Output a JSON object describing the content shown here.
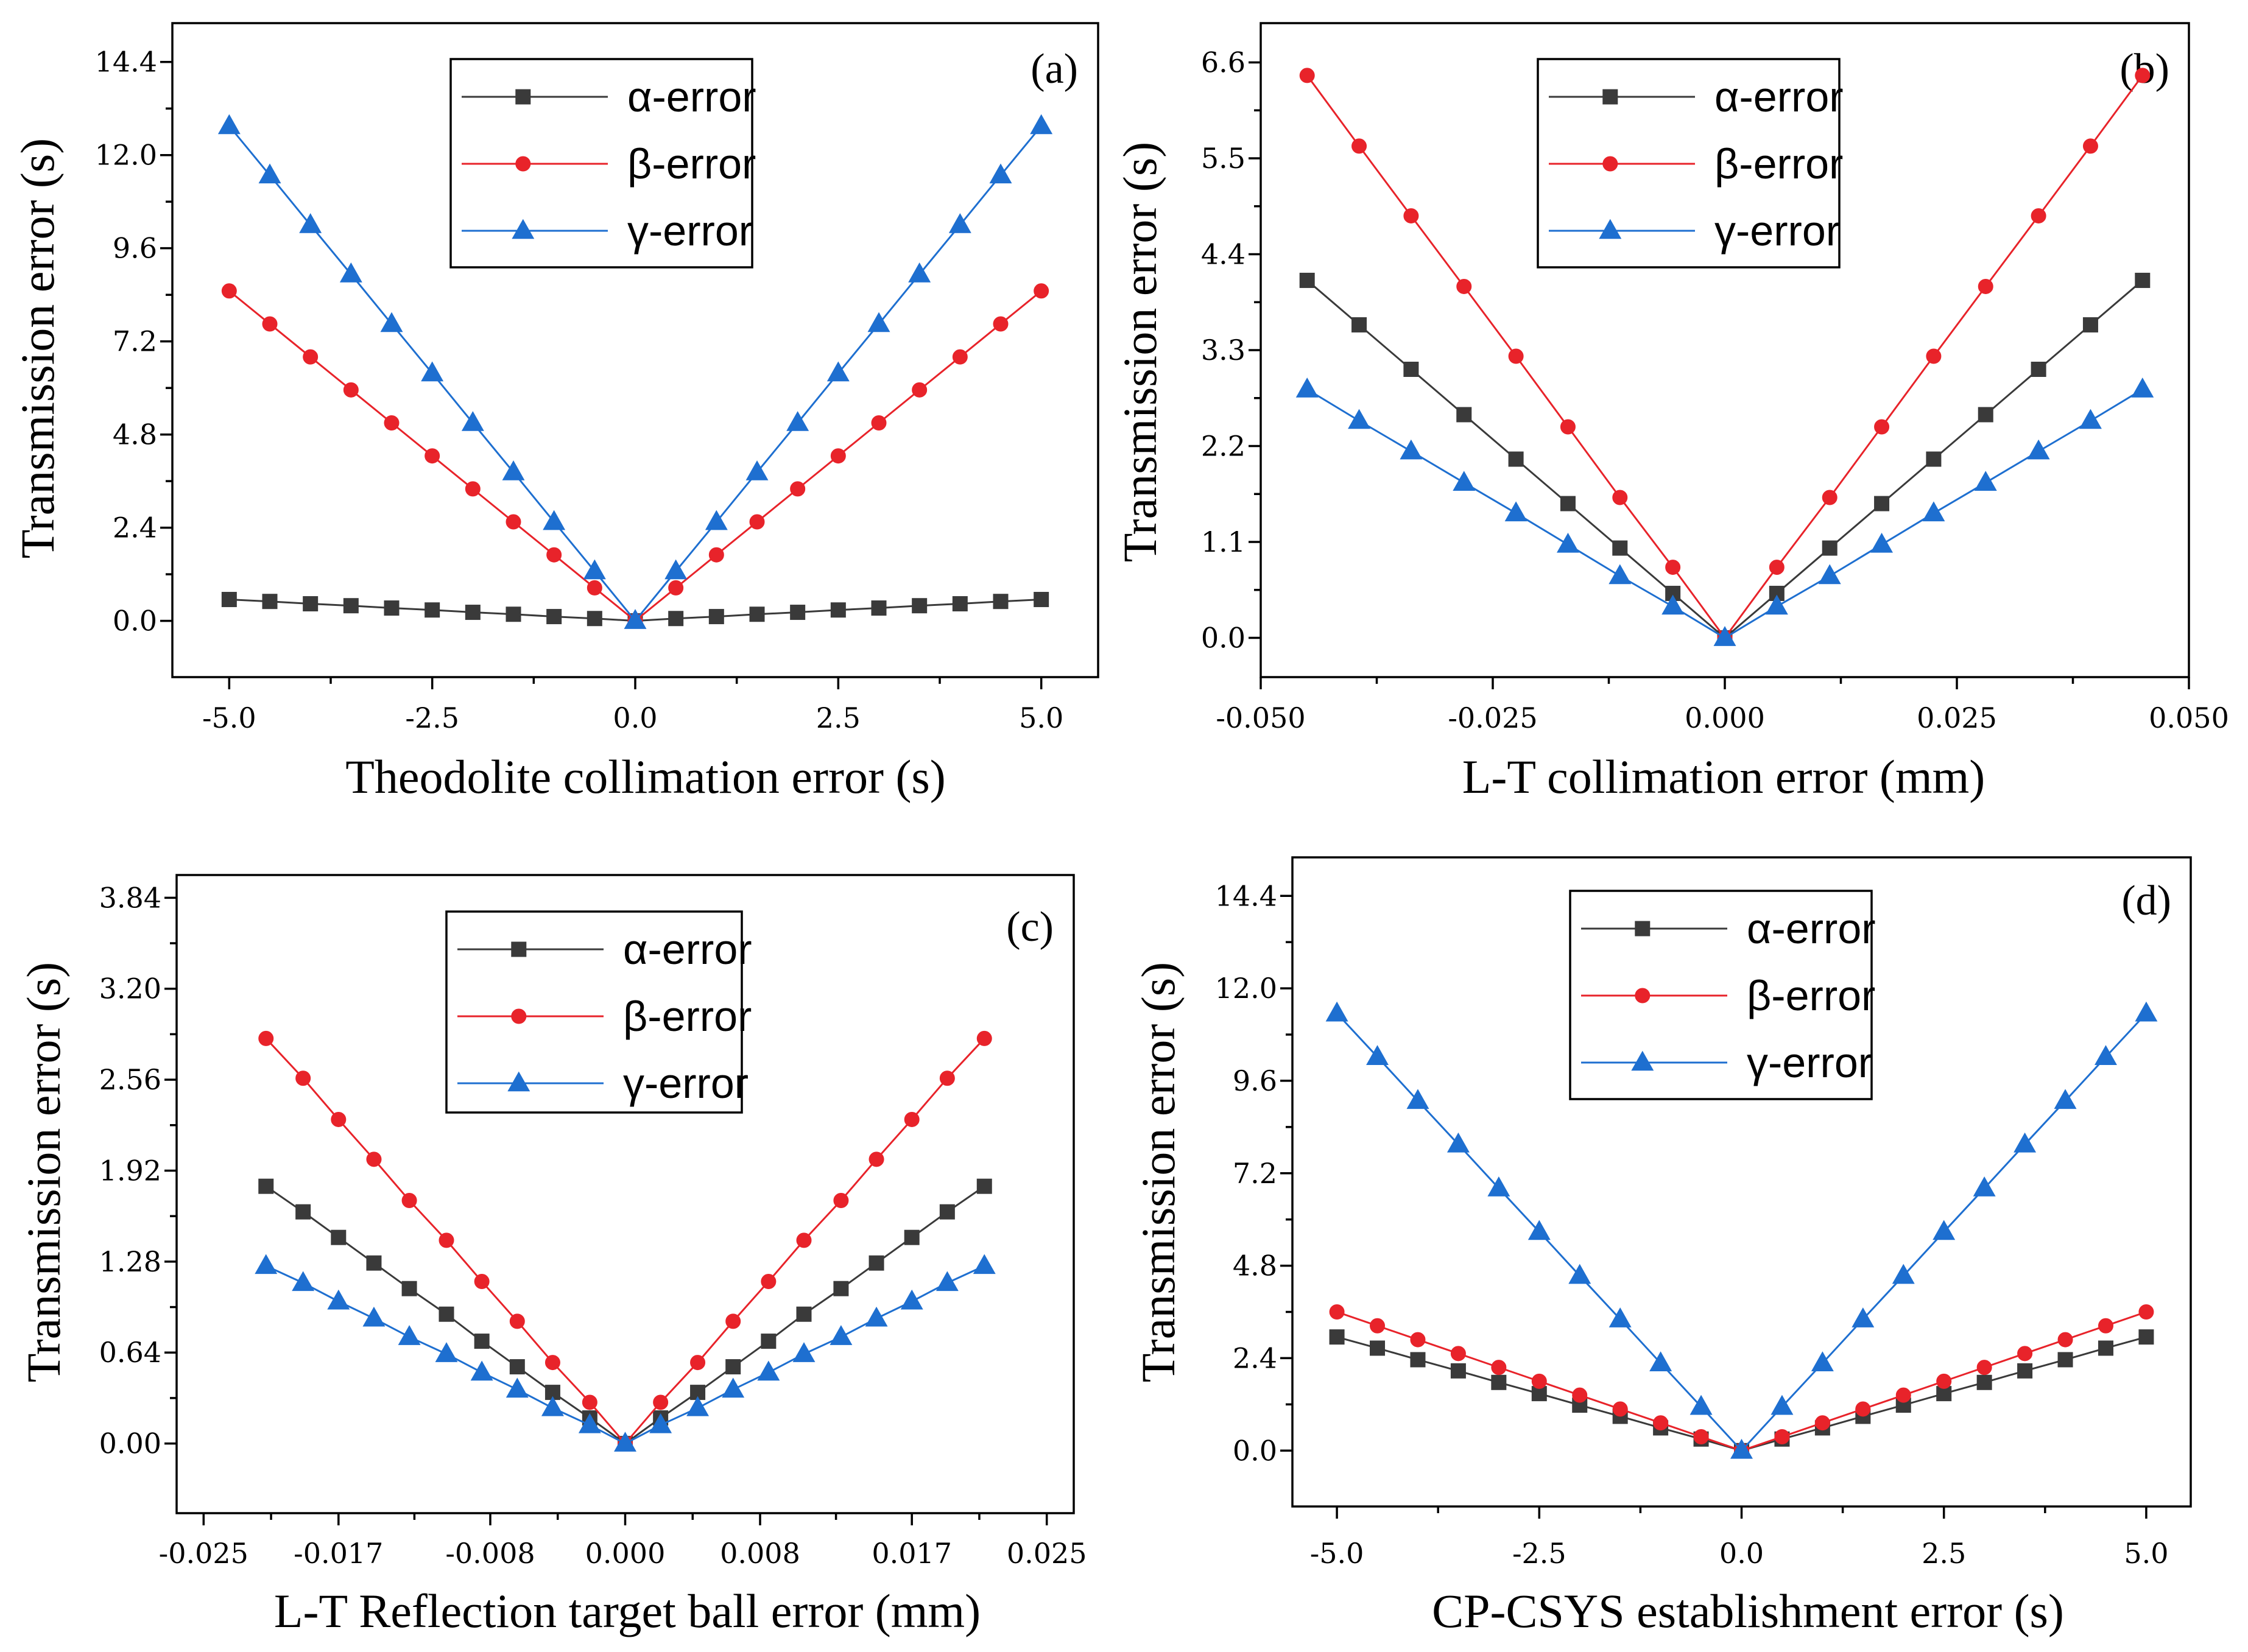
{
  "colors": {
    "alpha": "#3a3a3a",
    "beta": "#e8232a",
    "gamma": "#1e6fd0",
    "axis": "#000000"
  },
  "chart_data": [
    {
      "type": "line",
      "panel_label": "(a)",
      "xlabel": "Theodolite  collimation error (s)",
      "ylabel": "Transmission error (s)",
      "xlim": [
        -5.7,
        5.7
      ],
      "ylim": [
        -1.45,
        15.4
      ],
      "xticks": [
        -5.0,
        -2.5,
        0.0,
        2.5,
        5.0
      ],
      "xtick_labels": [
        "-5.0",
        "-2.5",
        "0.0",
        "2.5",
        "5.0"
      ],
      "yticks": [
        0.0,
        2.4,
        4.8,
        7.2,
        9.6,
        12.0,
        14.4
      ],
      "ytick_labels": [
        "0.0",
        "2.4",
        "4.8",
        "7.2",
        "9.6",
        "12.0",
        "14.4"
      ],
      "legend_position": "top-center",
      "x": [
        -5.0,
        -4.5,
        -4.0,
        -3.5,
        -3.0,
        -2.5,
        -2.0,
        -1.5,
        -1.0,
        -0.5,
        0.0,
        0.5,
        1.0,
        1.5,
        2.0,
        2.5,
        3.0,
        3.5,
        4.0,
        4.5,
        5.0
      ],
      "series": [
        {
          "name": "α-error",
          "marker": "square",
          "color_key": "alpha",
          "values": [
            0.55,
            0.5,
            0.44,
            0.39,
            0.33,
            0.28,
            0.22,
            0.17,
            0.11,
            0.06,
            0.0,
            0.06,
            0.11,
            0.17,
            0.22,
            0.28,
            0.33,
            0.39,
            0.44,
            0.5,
            0.55
          ]
        },
        {
          "name": "β-error",
          "marker": "circle",
          "color_key": "beta",
          "values": [
            8.5,
            7.65,
            6.8,
            5.95,
            5.1,
            4.25,
            3.4,
            2.55,
            1.7,
            0.85,
            0.0,
            0.85,
            1.7,
            2.55,
            3.4,
            4.25,
            5.1,
            5.95,
            6.8,
            7.65,
            8.5
          ]
        },
        {
          "name": "γ-error",
          "marker": "triangle",
          "color_key": "gamma",
          "values": [
            12.75,
            11.48,
            10.2,
            8.93,
            7.65,
            6.38,
            5.1,
            3.83,
            2.55,
            1.28,
            0.0,
            1.28,
            2.55,
            3.83,
            5.1,
            6.38,
            7.65,
            8.93,
            10.2,
            11.48,
            12.75
          ]
        }
      ]
    },
    {
      "type": "line",
      "panel_label": "(b)",
      "xlabel": "L-T collimation error (mm)",
      "ylabel": "Transmission error (s)",
      "xlim": [
        -0.05,
        0.05
      ],
      "ylim": [
        -0.45,
        7.05
      ],
      "xticks": [
        -0.05,
        -0.025,
        0.0,
        0.025,
        0.05
      ],
      "xtick_labels": [
        "-0.050",
        "-0.025",
        "0.000",
        "0.025",
        "0.050"
      ],
      "yticks": [
        0.0,
        1.1,
        2.2,
        3.3,
        4.4,
        5.5,
        6.6
      ],
      "ytick_labels": [
        "0.0",
        "1.1",
        "2.2",
        "3.3",
        "4.4",
        "5.5",
        "6.6"
      ],
      "legend_position": "top-center",
      "x": [
        -0.045,
        -0.0394,
        -0.0338,
        -0.0281,
        -0.0225,
        -0.0169,
        -0.0113,
        -0.0056,
        0.0,
        0.0056,
        0.0113,
        0.0169,
        0.0225,
        0.0281,
        0.0338,
        0.0394,
        0.045
      ],
      "series": [
        {
          "name": "α-error",
          "marker": "square",
          "color_key": "alpha",
          "values": [
            4.1,
            3.59,
            3.08,
            2.56,
            2.05,
            1.54,
            1.03,
            0.51,
            0.0,
            0.51,
            1.03,
            1.54,
            2.05,
            2.56,
            3.08,
            3.59,
            4.1
          ]
        },
        {
          "name": "β-error",
          "marker": "circle",
          "color_key": "beta",
          "values": [
            6.45,
            5.64,
            4.84,
            4.03,
            3.23,
            2.42,
            1.61,
            0.81,
            0.0,
            0.81,
            1.61,
            2.42,
            3.23,
            4.03,
            4.84,
            5.64,
            6.45
          ]
        },
        {
          "name": "γ-error",
          "marker": "triangle",
          "color_key": "gamma",
          "values": [
            2.85,
            2.49,
            2.14,
            1.78,
            1.43,
            1.07,
            0.71,
            0.36,
            0.0,
            0.36,
            0.71,
            1.07,
            1.43,
            1.78,
            2.14,
            2.49,
            2.85
          ]
        }
      ]
    },
    {
      "type": "line",
      "panel_label": "(c)",
      "xlabel": "L-T Reflection target ball error (mm)",
      "ylabel": "Transmission error (s)",
      "xlim": [
        -0.0266,
        0.0266
      ],
      "ylim": [
        -0.49,
        4.0
      ],
      "xticks": [
        -0.025,
        -0.017,
        -0.008,
        0.0,
        0.008,
        0.017,
        0.025
      ],
      "xtick_labels": [
        "-0.025",
        "-0.017",
        "-0.008",
        "0.000",
        "0.008",
        "0.017",
        "0.025"
      ],
      "yticks": [
        0.0,
        0.64,
        1.28,
        1.92,
        2.56,
        3.2,
        3.84
      ],
      "ytick_labels": [
        "0.00",
        "0.64",
        "1.28",
        "1.92",
        "2.56",
        "3.20",
        "3.84"
      ],
      "legend_position": "top-center",
      "x": [
        -0.0213,
        -0.0191,
        -0.017,
        -0.0149,
        -0.0128,
        -0.0106,
        -0.0085,
        -0.0064,
        -0.0043,
        -0.0021,
        0.0,
        0.0021,
        0.0043,
        0.0064,
        0.0085,
        0.0106,
        0.0128,
        0.0149,
        0.017,
        0.0191,
        0.0213
      ],
      "series": [
        {
          "name": "α-error",
          "marker": "square",
          "color_key": "alpha",
          "values": [
            1.81,
            1.63,
            1.45,
            1.27,
            1.09,
            0.91,
            0.72,
            0.54,
            0.36,
            0.18,
            0.0,
            0.18,
            0.36,
            0.54,
            0.72,
            0.91,
            1.09,
            1.27,
            1.45,
            1.63,
            1.81
          ]
        },
        {
          "name": "β-error",
          "marker": "circle",
          "color_key": "beta",
          "values": [
            2.85,
            2.57,
            2.28,
            2.0,
            1.71,
            1.43,
            1.14,
            0.86,
            0.57,
            0.29,
            0.0,
            0.29,
            0.57,
            0.86,
            1.14,
            1.43,
            1.71,
            2.0,
            2.28,
            2.57,
            2.85
          ]
        },
        {
          "name": "γ-error",
          "marker": "triangle",
          "color_key": "gamma",
          "values": [
            1.25,
            1.13,
            1.0,
            0.88,
            0.75,
            0.63,
            0.5,
            0.38,
            0.25,
            0.13,
            0.0,
            0.13,
            0.25,
            0.38,
            0.5,
            0.63,
            0.75,
            0.88,
            1.0,
            1.13,
            1.25
          ]
        }
      ]
    },
    {
      "type": "line",
      "panel_label": "(d)",
      "xlabel": "CP-CSYS establishment error (s)",
      "ylabel": "Transmission error (s)",
      "xlim": [
        -5.55,
        5.55
      ],
      "ylim": [
        -1.45,
        15.4
      ],
      "xticks": [
        -5.0,
        -2.5,
        0.0,
        2.5,
        5.0
      ],
      "xtick_labels": [
        "-5.0",
        "-2.5",
        "0.0",
        "2.5",
        "5.0"
      ],
      "yticks": [
        0.0,
        2.4,
        4.8,
        7.2,
        9.6,
        12.0,
        14.4
      ],
      "ytick_labels": [
        "0.0",
        "2.4",
        "4.8",
        "7.2",
        "9.6",
        "12.0",
        "14.4"
      ],
      "legend_position": "top-center",
      "x": [
        -5.0,
        -4.5,
        -4.0,
        -3.5,
        -3.0,
        -2.5,
        -2.0,
        -1.5,
        -1.0,
        -0.5,
        0.0,
        0.5,
        1.0,
        1.5,
        2.0,
        2.5,
        3.0,
        3.5,
        4.0,
        4.5,
        5.0
      ],
      "series": [
        {
          "name": "α-error",
          "marker": "square",
          "color_key": "alpha",
          "values": [
            2.95,
            2.66,
            2.36,
            2.07,
            1.77,
            1.48,
            1.18,
            0.89,
            0.59,
            0.3,
            0.0,
            0.3,
            0.59,
            0.89,
            1.18,
            1.48,
            1.77,
            2.07,
            2.36,
            2.66,
            2.95
          ]
        },
        {
          "name": "β-error",
          "marker": "circle",
          "color_key": "beta",
          "values": [
            3.6,
            3.24,
            2.88,
            2.52,
            2.16,
            1.8,
            1.44,
            1.08,
            0.72,
            0.36,
            0.0,
            0.36,
            0.72,
            1.08,
            1.44,
            1.8,
            2.16,
            2.52,
            2.88,
            3.24,
            3.6
          ]
        },
        {
          "name": "γ-error",
          "marker": "triangle",
          "color_key": "gamma",
          "values": [
            11.35,
            10.22,
            9.08,
            7.95,
            6.81,
            5.68,
            4.54,
            3.41,
            2.27,
            1.14,
            0.0,
            1.14,
            2.27,
            3.41,
            4.54,
            5.68,
            6.81,
            7.95,
            9.08,
            10.22,
            11.35
          ]
        }
      ]
    }
  ]
}
